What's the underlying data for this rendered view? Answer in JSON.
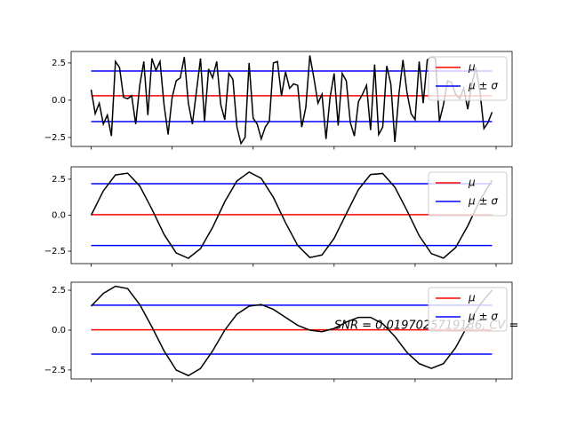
{
  "chart_data": [
    {
      "type": "line",
      "xlim": [
        -4.95,
        103.95
      ],
      "xticks": [
        0,
        20,
        40,
        60,
        80,
        100
      ],
      "ylim": [
        -3.1,
        3.27
      ],
      "yticks": [
        {
          "value": 2.5,
          "label": "2.5"
        },
        {
          "value": 0,
          "label": "0.0"
        },
        {
          "value": -2.5,
          "label": "−2.5"
        }
      ],
      "legend": "upper right",
      "series": [
        {
          "color": "#000000",
          "values": [
            0.7,
            -0.9,
            -0.2,
            -1.6,
            -1.0,
            -2.4,
            2.6,
            2.2,
            0.2,
            0.1,
            0.3,
            -1.6,
            1.0,
            2.6,
            -1.0,
            2.8,
            2.0,
            2.6,
            -0.3,
            -2.3,
            0.2,
            1.3,
            1.5,
            2.9,
            -0.2,
            -1.6,
            0.6,
            2.8,
            -1.4,
            2.1,
            1.5,
            2.6,
            -0.3,
            -1.3,
            1.8,
            1.4,
            -1.8,
            -2.9,
            -2.5,
            2.5,
            -1.2,
            -1.6,
            -2.6,
            -1.8,
            -1.4,
            2.5,
            2.6,
            0.3,
            1.9,
            0.8,
            1.1,
            1.0,
            -1.8,
            -0.5,
            3.0,
            1.5,
            -0.2,
            0.4,
            -2.6,
            0.2,
            1.8,
            -1.7,
            1.8,
            1.3,
            -1.5,
            -2.4,
            -0.1,
            0.4,
            1.0,
            -2.0,
            2.4,
            -2.3,
            -1.8,
            2.3,
            1.1,
            -2.8,
            0.4,
            2.7,
            0.5,
            -0.9,
            -1.3,
            2.6,
            -0.2,
            2.7,
            2.9,
            2.8,
            -1.4,
            -0.3,
            1.3,
            1.2,
            0.4,
            0.1,
            0.8,
            -0.6,
            1.1,
            2.2,
            0.6,
            -1.9,
            -1.5,
            -0.8
          ]
        }
      ],
      "hlines": [
        {
          "name": "μ",
          "color": "#ff0000",
          "values": [
            0.3
          ]
        },
        {
          "name": "μ ± σ",
          "color": "#0000ff",
          "values": [
            1.96,
            -1.43
          ]
        }
      ],
      "hline_x": [
        0,
        99
      ]
    },
    {
      "type": "line",
      "xlim": [
        -4.95,
        103.95
      ],
      "xticks": [
        0,
        20,
        40,
        60,
        80,
        100
      ],
      "ylim": [
        -3.36,
        3.36
      ],
      "yticks": [
        {
          "value": 2.5,
          "label": "2.5"
        },
        {
          "value": 0,
          "label": "0.0"
        },
        {
          "value": -2.5,
          "label": "−2.5"
        }
      ],
      "legend": "upper right",
      "series": [
        {
          "color": "#000000",
          "x": [
            0,
            3,
            6,
            9,
            12,
            15,
            18,
            21,
            24,
            27,
            30,
            33,
            36,
            39,
            42,
            45,
            48,
            51,
            54,
            57,
            60,
            63,
            66,
            69,
            72,
            75,
            78,
            81,
            84,
            87,
            90,
            93,
            96,
            99
          ],
          "values": [
            0,
            1.69,
            2.8,
            2.92,
            2.03,
            0.42,
            -1.33,
            -2.62,
            -2.99,
            -2.32,
            -0.84,
            0.94,
            2.38,
            3.0,
            2.56,
            1.24,
            -0.52,
            -2.1,
            -2.94,
            -2.76,
            -1.61,
            0.1,
            1.78,
            2.83,
            2.9,
            1.95,
            0.32,
            -1.42,
            -2.66,
            -2.98,
            -2.25,
            -0.74,
            1.03,
            2.42
          ]
        }
      ],
      "hlines": [
        {
          "name": "μ",
          "color": "#ff0000",
          "values": [
            0.04
          ]
        },
        {
          "name": "μ ± σ",
          "color": "#0000ff",
          "values": [
            2.19,
            -2.1
          ]
        }
      ],
      "hline_x": [
        0,
        99
      ]
    },
    {
      "type": "line",
      "xlim": [
        -4.95,
        103.95
      ],
      "xticks": [
        0,
        20,
        40,
        60,
        80,
        100
      ],
      "ylim": [
        -3.06,
        3.0
      ],
      "yticks": [
        {
          "value": 2.5,
          "label": "2.5"
        },
        {
          "value": 0,
          "label": "0.0"
        },
        {
          "value": -2.5,
          "label": "−2.5"
        }
      ],
      "legend": "upper right",
      "annotation": "SNR = 0.0197025719186, CV =",
      "series": [
        {
          "color": "#000000",
          "x": [
            0,
            3,
            6,
            9,
            12,
            15,
            18,
            21,
            24,
            27,
            30,
            33,
            36,
            39,
            42,
            45,
            48,
            51,
            54,
            57,
            60,
            63,
            66,
            69,
            72,
            75,
            78,
            81,
            84,
            87,
            90,
            93,
            96,
            99
          ],
          "values": [
            1.5,
            2.3,
            2.75,
            2.6,
            1.6,
            0.2,
            -1.3,
            -2.5,
            -2.85,
            -2.4,
            -1.3,
            0.0,
            1.0,
            1.5,
            1.6,
            1.3,
            0.8,
            0.3,
            0.0,
            -0.1,
            0.1,
            0.5,
            0.8,
            0.8,
            0.4,
            -0.4,
            -1.4,
            -2.1,
            -2.4,
            -2.1,
            -1.1,
            0.3,
            1.6,
            2.5
          ]
        }
      ],
      "hlines": [
        {
          "name": "μ",
          "color": "#ff0000",
          "values": [
            0.02
          ]
        },
        {
          "name": "μ ± σ",
          "color": "#0000ff",
          "values": [
            1.56,
            -1.5
          ]
        }
      ],
      "hline_x": [
        0,
        99
      ]
    }
  ]
}
